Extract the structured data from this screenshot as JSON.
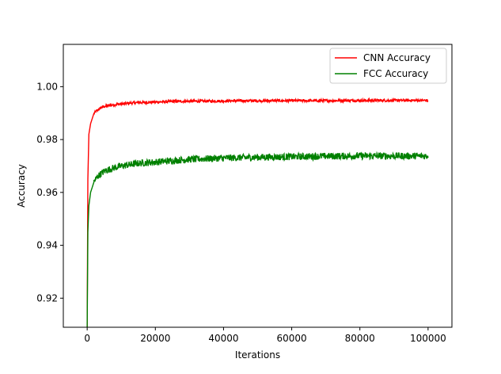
{
  "chart_data": {
    "type": "line",
    "title": "",
    "xlabel": "Iterations",
    "ylabel": "Accuracy",
    "xlim": [
      -7000,
      107000
    ],
    "ylim": [
      0.909,
      1.016
    ],
    "xticks": [
      0,
      20000,
      40000,
      60000,
      80000,
      100000
    ],
    "xtick_labels": [
      "0",
      "20000",
      "40000",
      "60000",
      "80000",
      "100000"
    ],
    "yticks": [
      0.92,
      0.94,
      0.96,
      0.98,
      1.0
    ],
    "ytick_labels": [
      "0.92",
      "0.94",
      "0.96",
      "0.98",
      "1.00"
    ],
    "grid": false,
    "legend_position": "top-right",
    "series": [
      {
        "name": "CNN Accuracy",
        "color": "#ff0000",
        "x": [
          0,
          200,
          500,
          1000,
          1500,
          2000,
          3000,
          4000,
          5000,
          7000,
          10000,
          15000,
          20000,
          25000,
          30000,
          40000,
          50000,
          60000,
          70000,
          80000,
          90000,
          100000
        ],
        "y": [
          0.909,
          0.965,
          0.982,
          0.986,
          0.988,
          0.99,
          0.991,
          0.992,
          0.9925,
          0.993,
          0.9935,
          0.994,
          0.9942,
          0.9944,
          0.9945,
          0.9946,
          0.9947,
          0.9947,
          0.9947,
          0.9948,
          0.9948,
          0.9948
        ]
      },
      {
        "name": "FCC Accuracy",
        "color": "#008000",
        "x": [
          0,
          200,
          500,
          1000,
          1500,
          2000,
          3000,
          4000,
          5000,
          7000,
          10000,
          15000,
          20000,
          25000,
          30000,
          40000,
          50000,
          60000,
          70000,
          80000,
          90000,
          100000
        ],
        "y": [
          0.909,
          0.945,
          0.955,
          0.96,
          0.962,
          0.964,
          0.966,
          0.967,
          0.968,
          0.969,
          0.97,
          0.971,
          0.9715,
          0.972,
          0.9725,
          0.973,
          0.9733,
          0.9735,
          0.9737,
          0.9738,
          0.9738,
          0.9738
        ]
      }
    ]
  }
}
